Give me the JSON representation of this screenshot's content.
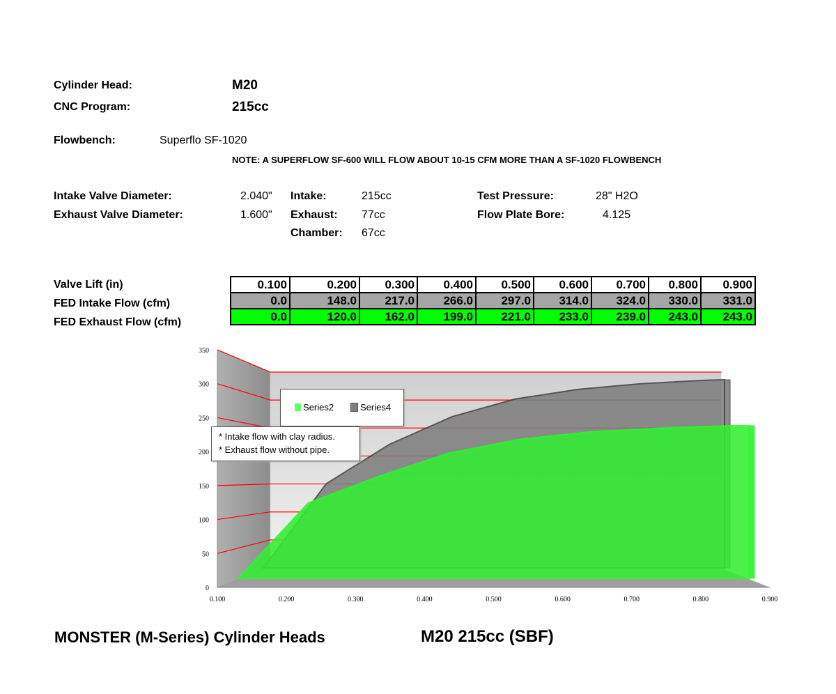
{
  "header": {
    "cylinder_head_label": "Cylinder Head:",
    "cylinder_head_value": "M20",
    "cnc_program_label": "CNC Program:",
    "cnc_program_value": "215cc",
    "flowbench_label": "Flowbench:",
    "flowbench_value": "Superflo SF-1020",
    "note": "NOTE: A SUPERFLOW SF-600 WILL FLOW ABOUT 10-15 CFM MORE THAN A SF-1020 FLOWBENCH"
  },
  "specs": {
    "intake_valve_label": "Intake Valve Diameter:",
    "intake_valve_value": "2.040\"",
    "exhaust_valve_label": "Exhaust Valve Diameter:",
    "exhaust_valve_value": "1.600\"",
    "intake_label": "Intake:",
    "intake_value": "215cc",
    "exhaust_label": "Exhaust:",
    "exhaust_value": "77cc",
    "chamber_label": "Chamber:",
    "chamber_value": "67cc",
    "test_pressure_label": "Test Pressure:",
    "test_pressure_value": "28\" H2O",
    "flow_plate_label": "Flow Plate Bore:",
    "flow_plate_value": "4.125"
  },
  "table": {
    "rows": [
      {
        "label": "Valve Lift (in)",
        "cells": [
          "0.100",
          "0.200",
          "0.300",
          "0.400",
          "0.500",
          "0.600",
          "0.700",
          "0.800",
          "0.900"
        ]
      },
      {
        "label": "FED Intake Flow (cfm)",
        "cells": [
          "0.0",
          "148.0",
          "217.0",
          "266.0",
          "297.0",
          "314.0",
          "324.0",
          "330.0",
          "331.0"
        ]
      },
      {
        "label": "FED Exhaust Flow (cfm)",
        "cells": [
          "0.0",
          "120.0",
          "162.0",
          "199.0",
          "221.0",
          "233.0",
          "239.0",
          "243.0",
          "243.0"
        ]
      }
    ],
    "colors": {
      "lift": "#ffffff",
      "intake": "#a6a6a6",
      "exhaust": "#00ff00"
    }
  },
  "chart_data": {
    "type": "area",
    "style": "3d",
    "x": [
      0.1,
      0.2,
      0.3,
      0.4,
      0.5,
      0.6,
      0.7,
      0.8,
      0.9
    ],
    "x_ticks": [
      "0.100",
      "0.200",
      "0.300",
      "0.400",
      "0.500",
      "0.600",
      "0.700",
      "0.800",
      "0.900"
    ],
    "y_ticks": [
      "0",
      "50",
      "100",
      "150",
      "200",
      "250",
      "300",
      "350"
    ],
    "ylim": [
      0,
      350
    ],
    "grid": true,
    "gridline_color": "#ff0000",
    "series": [
      {
        "name": "Series4",
        "values": [
          0,
          148,
          217,
          266,
          297,
          314,
          324,
          330,
          331
        ],
        "color": "#7f7f7f"
      },
      {
        "name": "Series2",
        "values": [
          0,
          120,
          162,
          199,
          221,
          233,
          239,
          243,
          243
        ],
        "color": "#33ff33"
      }
    ],
    "legend_placement": "top-left",
    "annotation_lines": [
      "* Intake flow with clay radius.",
      "* Exhaust flow without pipe."
    ]
  },
  "footer": {
    "left": "MONSTER (M-Series) Cylinder Heads",
    "right": "M20 215cc (SBF)"
  }
}
